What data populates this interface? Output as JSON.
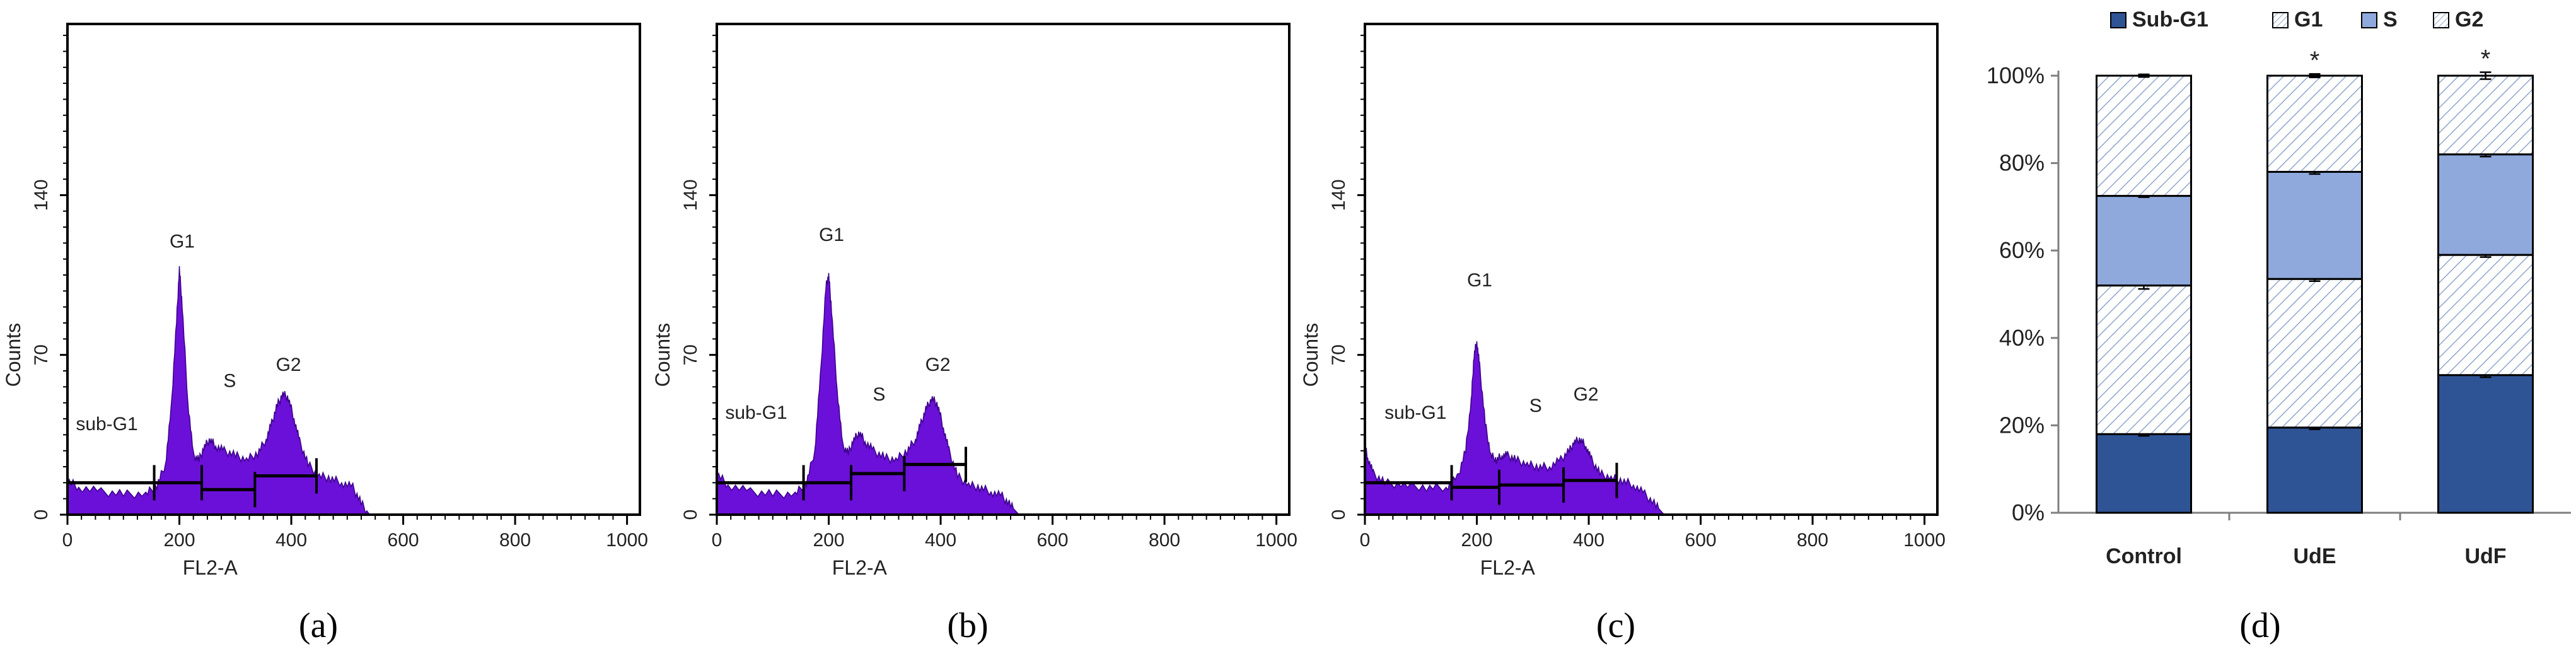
{
  "colors": {
    "histogram_fill": "#6b10d8",
    "histogram_edge": "#3a0088",
    "sub_g1": "#2f5496",
    "g1": "#ffffff",
    "s": "#8fa9dc",
    "g2": "#ffffff",
    "hatch": "#8fa6cc",
    "gate_line": "#000000"
  },
  "chart_data": [
    {
      "type": "area",
      "panel": "(a)",
      "xlabel": "FL2-A",
      "ylabel": "Counts",
      "x_ticks": [
        "0",
        "200",
        "400",
        "600",
        "800",
        "1000"
      ],
      "y_ticks": [
        "0",
        "70",
        "140"
      ],
      "xlim": [
        0,
        1023
      ],
      "ylim": [
        0,
        215
      ],
      "gates": [
        "sub-G1",
        "G1",
        "S",
        "G2"
      ],
      "gate_markers": [
        {
          "label": "sub-G1",
          "x1": 0,
          "x2": 155,
          "y": 14
        },
        {
          "label": "G1",
          "x1": 155,
          "x2": 240,
          "y": 14
        },
        {
          "label": "S",
          "x1": 240,
          "x2": 335,
          "y": 11
        },
        {
          "label": "G2",
          "x1": 335,
          "x2": 445,
          "y": 17
        }
      ],
      "label_positions": [
        {
          "label": "sub-G1",
          "x": 15,
          "y": 37
        },
        {
          "label": "G1",
          "x": 205,
          "y": 117
        },
        {
          "label": "S",
          "x": 290,
          "y": 56
        },
        {
          "label": "G2",
          "x": 395,
          "y": 63
        }
      ],
      "histogram": {
        "x": [
          0,
          20,
          60,
          100,
          140,
          160,
          175,
          185,
          195,
          200,
          205,
          215,
          225,
          235,
          245,
          255,
          265,
          280,
          300,
          320,
          340,
          355,
          365,
          375,
          385,
          395,
          405,
          415,
          430,
          450,
          470,
          490,
          510,
          525,
          540
        ],
        "y": [
          15,
          12,
          10,
          9,
          9,
          13,
          22,
          45,
          85,
          108,
          92,
          50,
          26,
          24,
          30,
          33,
          30,
          28,
          26,
          24,
          27,
          33,
          40,
          48,
          53,
          51,
          42,
          32,
          22,
          17,
          16,
          14,
          12,
          5,
          0
        ]
      }
    },
    {
      "type": "area",
      "panel": "(b)",
      "xlabel": "FL2-A",
      "ylabel": "Counts",
      "x_ticks": [
        "0",
        "200",
        "400",
        "600",
        "800",
        "1000"
      ],
      "y_ticks": [
        "0",
        "70",
        "140"
      ],
      "xlim": [
        0,
        1023
      ],
      "ylim": [
        0,
        215
      ],
      "gates": [
        "sub-G1",
        "G1",
        "S",
        "G2"
      ],
      "gate_markers": [
        {
          "label": "sub-G1",
          "x1": 0,
          "x2": 155,
          "y": 14
        },
        {
          "label": "G1",
          "x1": 155,
          "x2": 240,
          "y": 14
        },
        {
          "label": "S",
          "x1": 240,
          "x2": 335,
          "y": 18
        },
        {
          "label": "G2",
          "x1": 335,
          "x2": 445,
          "y": 22
        }
      ],
      "label_positions": [
        {
          "label": "sub-G1",
          "x": 15,
          "y": 42
        },
        {
          "label": "G1",
          "x": 205,
          "y": 120
        },
        {
          "label": "S",
          "x": 290,
          "y": 50
        },
        {
          "label": "G2",
          "x": 395,
          "y": 63
        }
      ],
      "histogram": {
        "x": [
          0,
          20,
          60,
          100,
          140,
          160,
          175,
          185,
          195,
          200,
          205,
          215,
          225,
          235,
          245,
          255,
          265,
          280,
          300,
          320,
          340,
          355,
          365,
          375,
          385,
          395,
          405,
          415,
          430,
          450,
          470,
          490,
          510,
          525,
          540
        ],
        "y": [
          18,
          13,
          10,
          9,
          9,
          14,
          28,
          60,
          100,
          105,
          90,
          55,
          30,
          27,
          33,
          36,
          32,
          28,
          25,
          24,
          28,
          33,
          40,
          47,
          51,
          48,
          38,
          28,
          17,
          13,
          12,
          10,
          8,
          4,
          0
        ]
      }
    },
    {
      "type": "area",
      "panel": "(c)",
      "xlabel": "FL2-A",
      "ylabel": "Counts",
      "x_ticks": [
        "0",
        "200",
        "400",
        "600",
        "800",
        "1000"
      ],
      "y_ticks": [
        "0",
        "70",
        "140"
      ],
      "xlim": [
        0,
        1023
      ],
      "ylim": [
        0,
        215
      ],
      "gates": [
        "sub-G1",
        "G1",
        "S",
        "G2"
      ],
      "gate_markers": [
        {
          "label": "sub-G1",
          "x1": 0,
          "x2": 155,
          "y": 14
        },
        {
          "label": "G1",
          "x1": 155,
          "x2": 240,
          "y": 12
        },
        {
          "label": "S",
          "x1": 240,
          "x2": 355,
          "y": 13
        },
        {
          "label": "G2",
          "x1": 355,
          "x2": 450,
          "y": 15
        }
      ],
      "label_positions": [
        {
          "label": "sub-G1",
          "x": 35,
          "y": 42
        },
        {
          "label": "G1",
          "x": 205,
          "y": 100
        },
        {
          "label": "S",
          "x": 305,
          "y": 45
        },
        {
          "label": "G2",
          "x": 395,
          "y": 50
        }
      ],
      "histogram": {
        "x": [
          0,
          5,
          15,
          35,
          70,
          110,
          145,
          165,
          180,
          190,
          195,
          200,
          205,
          215,
          225,
          235,
          245,
          255,
          270,
          290,
          310,
          330,
          350,
          365,
          375,
          385,
          395,
          405,
          420,
          440,
          460,
          480,
          500,
          520,
          535
        ],
        "y": [
          30,
          25,
          18,
          14,
          13,
          12,
          12,
          16,
          28,
          50,
          70,
          76,
          65,
          40,
          26,
          24,
          26,
          26,
          24,
          22,
          21,
          21,
          24,
          28,
          32,
          33,
          30,
          24,
          18,
          16,
          15,
          13,
          9,
          4,
          0
        ]
      }
    },
    {
      "type": "bar",
      "stacked": true,
      "panel": "(d)",
      "categories": [
        "Control",
        "UdE",
        "UdF"
      ],
      "legend": [
        "Sub-G1",
        "G1",
        "S",
        "G2"
      ],
      "legend_position": "top",
      "y_ticks": [
        "0%",
        "20%",
        "40%",
        "60%",
        "80%",
        "100%"
      ],
      "ylim": [
        0,
        100
      ],
      "series": [
        {
          "name": "Sub-G1",
          "values": [
            18,
            19.5,
            31.5
          ],
          "errors": [
            0.4,
            0.4,
            0.5
          ],
          "star": [
            false,
            true,
            true
          ]
        },
        {
          "name": "G1",
          "values": [
            34,
            34,
            27.5
          ],
          "errors": [
            0.8,
            0.5,
            0.5
          ],
          "star": [
            false,
            false,
            true
          ]
        },
        {
          "name": "S",
          "values": [
            20.5,
            24.5,
            23
          ],
          "errors": [
            0.3,
            0.5,
            0.5
          ],
          "star": [
            false,
            true,
            true
          ]
        },
        {
          "name": "G2",
          "values": [
            27.5,
            22,
            18
          ],
          "errors": [
            0.3,
            0.4,
            0.8
          ],
          "star": [
            false,
            true,
            true
          ]
        }
      ],
      "star_label": "*"
    }
  ]
}
